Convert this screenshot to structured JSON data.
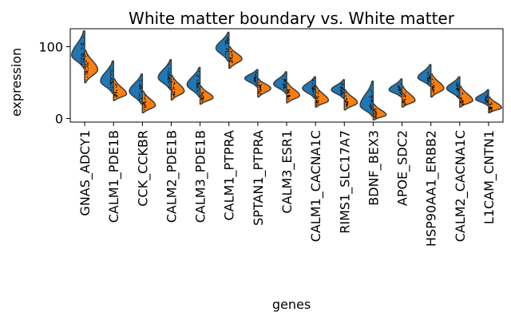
{
  "chart_data": {
    "type": "violin",
    "title": "White matter boundary vs. White matter",
    "xlabel": "genes",
    "ylabel": "expression",
    "ylim": [
      -5,
      125
    ],
    "yticks": [
      0,
      100
    ],
    "categories": [
      "GNAS_ADCY1",
      "CALM1_PDE1B",
      "CCK_CCKBR",
      "CALM2_PDE1B",
      "CALM3_PDE1B",
      "CALM1_PTPRA",
      "SPTAN1_PTPRA",
      "CALM3_ESR1",
      "CALM1_CACNA1C",
      "RIMS1_SLC17A7",
      "BDNF_BEX3",
      "APOE_SDC2",
      "HSP90AA1_ERBB2",
      "CALM2_CACNA1C",
      "L1CAM_CNTN1"
    ],
    "split": true,
    "grid": false,
    "series": [
      {
        "side": "left",
        "color": "#1f77b4",
        "violins": [
          {
            "min": 70,
            "max": 122,
            "mode": 88
          },
          {
            "min": 35,
            "max": 80,
            "mode": 52
          },
          {
            "min": 20,
            "max": 62,
            "mode": 38
          },
          {
            "min": 40,
            "max": 82,
            "mode": 57
          },
          {
            "min": 30,
            "max": 71,
            "mode": 47
          },
          {
            "min": 80,
            "max": 120,
            "mode": 98
          },
          {
            "min": 44,
            "max": 68,
            "mode": 56
          },
          {
            "min": 35,
            "max": 65,
            "mode": 48
          },
          {
            "min": 28,
            "max": 58,
            "mode": 42
          },
          {
            "min": 28,
            "max": 54,
            "mode": 40
          },
          {
            "min": 3,
            "max": 52,
            "mode": 18
          },
          {
            "min": 30,
            "max": 55,
            "mode": 40
          },
          {
            "min": 45,
            "max": 75,
            "mode": 57
          },
          {
            "min": 28,
            "max": 58,
            "mode": 42
          },
          {
            "min": 18,
            "max": 40,
            "mode": 27
          }
        ]
      },
      {
        "side": "right",
        "color": "#ff7f0e",
        "violins": [
          {
            "min": 50,
            "max": 95,
            "mode": 68
          },
          {
            "min": 25,
            "max": 55,
            "mode": 34
          },
          {
            "min": 8,
            "max": 38,
            "mode": 18
          },
          {
            "min": 26,
            "max": 60,
            "mode": 38
          },
          {
            "min": 20,
            "max": 45,
            "mode": 29
          },
          {
            "min": 70,
            "max": 100,
            "mode": 83
          },
          {
            "min": 30,
            "max": 55,
            "mode": 42
          },
          {
            "min": 22,
            "max": 50,
            "mode": 32
          },
          {
            "min": 16,
            "max": 45,
            "mode": 25
          },
          {
            "min": 12,
            "max": 40,
            "mode": 22
          },
          {
            "min": -2,
            "max": 20,
            "mode": 5
          },
          {
            "min": 16,
            "max": 45,
            "mode": 25
          },
          {
            "min": 30,
            "max": 62,
            "mode": 42
          },
          {
            "min": 16,
            "max": 45,
            "mode": 25
          },
          {
            "min": 8,
            "max": 30,
            "mode": 15
          }
        ]
      }
    ]
  }
}
